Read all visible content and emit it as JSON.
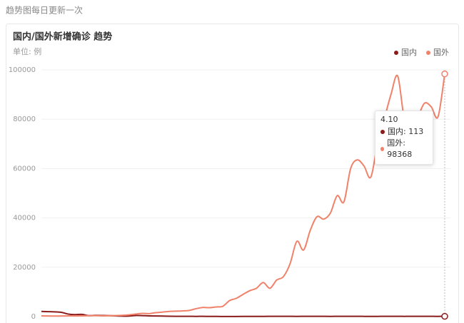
{
  "header": {
    "note": "趋势图每日更新一次"
  },
  "chart_data": {
    "type": "line",
    "title": "国内/国外新增确诊 趋势",
    "subtitle": "单位: 例",
    "categories": [
      null,
      null,
      null,
      null,
      null,
      null,
      null,
      null,
      null,
      null,
      null,
      null,
      null,
      null,
      null,
      null,
      null,
      null,
      null,
      null,
      null,
      null,
      null,
      null,
      null,
      null,
      null,
      null,
      null,
      null,
      null,
      null,
      null,
      null,
      null,
      null,
      null,
      null,
      null,
      null,
      null,
      null,
      null,
      null,
      null,
      null,
      null,
      null,
      null,
      null,
      null,
      null,
      null,
      null,
      null,
      null,
      null,
      null,
      null,
      null,
      "4.10"
    ],
    "series": [
      {
        "name": "国内",
        "color": "#8b1c1c",
        "values": [
          2100,
          2000,
          1900,
          1700,
          1000,
          800,
          900,
          400,
          500,
          450,
          400,
          300,
          200,
          200,
          450,
          400,
          300,
          250,
          200,
          150,
          120,
          100,
          110,
          90,
          100,
          80,
          60,
          50,
          40,
          50,
          60,
          70,
          80,
          90,
          100,
          110,
          120,
          100,
          90,
          100,
          110,
          120,
          100,
          90,
          100,
          110,
          120,
          100,
          90,
          80,
          90,
          100,
          110,
          100,
          90,
          100,
          110,
          120,
          100,
          90,
          113
        ]
      },
      {
        "name": "国外",
        "color": "#f0826a",
        "values": [
          300,
          250,
          200,
          250,
          300,
          250,
          300,
          350,
          400,
          300,
          350,
          400,
          500,
          700,
          1000,
          1300,
          1200,
          1600,
          1800,
          2100,
          2200,
          2300,
          2500,
          3200,
          3700,
          3600,
          3900,
          4200,
          6500,
          7400,
          9000,
          10500,
          11500,
          13800,
          11500,
          14800,
          16200,
          21500,
          30500,
          27000,
          35000,
          40500,
          39500,
          42000,
          49000,
          46500,
          60000,
          63500,
          61000,
          56500,
          70000,
          80000,
          90000,
          97500,
          80000,
          77000,
          81000,
          86500,
          85000,
          81000,
          98368
        ]
      }
    ],
    "ylim": [
      0,
      100000
    ],
    "yticks": [
      0,
      20000,
      40000,
      60000,
      80000,
      100000
    ],
    "grid": true,
    "legend": "top-right",
    "tooltip": {
      "items": [
        "国内: 113",
        "国外: 98368"
      ]
    }
  }
}
